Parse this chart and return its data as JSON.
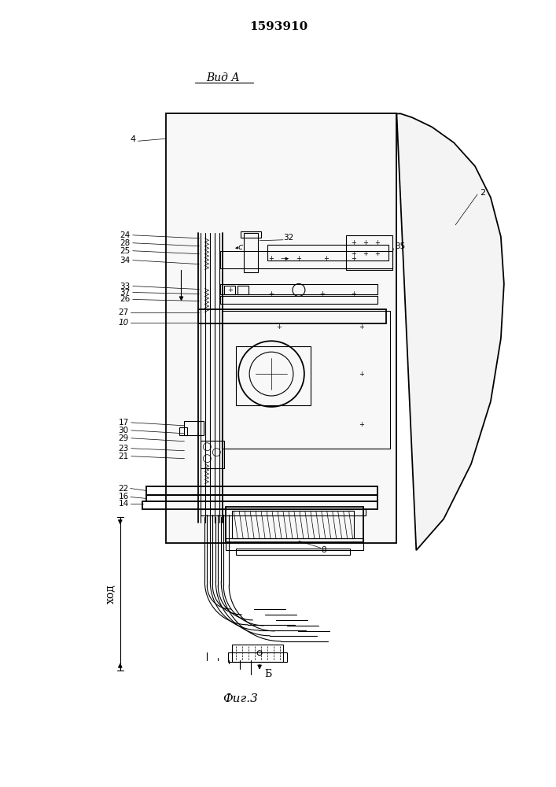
{
  "patent_number": "1593910",
  "view_label": "Вид А",
  "figure_label": "Фиг.3",
  "stroke_label": "ход",
  "arrow_label": "Б",
  "bg_color": "#ffffff",
  "line_color": "#000000"
}
